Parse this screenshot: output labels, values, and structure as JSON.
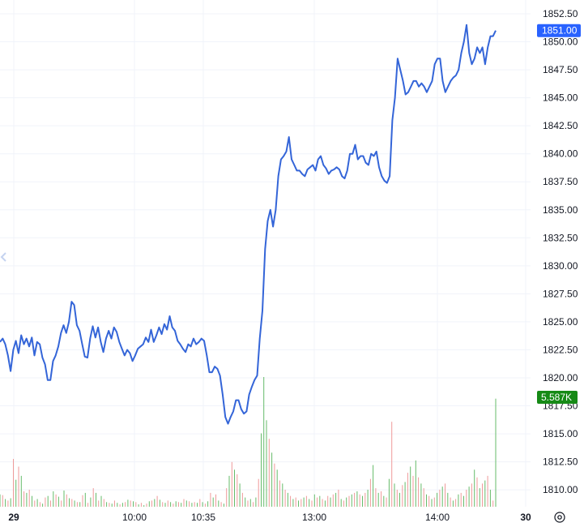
{
  "chart_data": {
    "type": "line",
    "title": "",
    "xlabel": "",
    "ylabel": "",
    "x_tick_labels": [
      "29",
      "10:00",
      "10:35",
      "13:00",
      "14:00",
      "30"
    ],
    "x_tick_bold": [
      "29",
      "30"
    ],
    "y_tick_labels": [
      "1852.50",
      "1850.00",
      "1847.50",
      "1845.00",
      "1842.50",
      "1840.00",
      "1837.50",
      "1835.00",
      "1832.50",
      "1830.00",
      "1827.50",
      "1825.00",
      "1822.50",
      "1820.00",
      "1817.50",
      "1815.00",
      "1812.50",
      "1810.00"
    ],
    "ylim": [
      1808.95,
      1853.45
    ],
    "grid": true,
    "last_price_label": "1851.00",
    "last_price_value": 1851.0,
    "volume_label": "5.587K",
    "series": [
      {
        "values": [
          1823.2,
          1823.5,
          1823.0,
          1822.0,
          1820.6,
          1822.5,
          1823.3,
          1822.2,
          1823.8,
          1823.0,
          1823.5,
          1822.8,
          1823.6,
          1822.0,
          1823.2,
          1823.0,
          1821.8,
          1821.2,
          1819.8,
          1819.8,
          1821.5,
          1822.0,
          1822.8,
          1824.0,
          1824.7,
          1824.0,
          1825.0,
          1826.8,
          1826.5,
          1824.7,
          1824.2,
          1823.0,
          1821.9,
          1821.8,
          1823.5,
          1824.6,
          1823.6,
          1824.5,
          1823.2,
          1822.3,
          1823.5,
          1824.2,
          1823.5,
          1824.5,
          1824.1,
          1823.2,
          1822.6,
          1822.0,
          1822.5,
          1822.2,
          1821.5,
          1822.0,
          1822.6,
          1822.8,
          1823.0,
          1823.6,
          1823.2,
          1824.3,
          1823.2,
          1823.8,
          1824.5,
          1823.9,
          1824.8,
          1824.3,
          1825.5,
          1824.5,
          1824.2,
          1823.3,
          1823.0,
          1822.6,
          1822.3,
          1823.0,
          1822.8,
          1823.5,
          1823.0,
          1823.2,
          1823.5,
          1823.3,
          1822.0,
          1820.5,
          1820.5,
          1821.0,
          1820.8,
          1820.2,
          1818.5,
          1816.5,
          1815.9,
          1816.5,
          1817.0,
          1818.0,
          1818.0,
          1817.2,
          1816.8,
          1817.0,
          1818.5,
          1819.2,
          1819.8,
          1820.2,
          1823.5,
          1826.0,
          1831.5,
          1834.0,
          1835.0,
          1833.5,
          1835.0,
          1838.0,
          1839.5,
          1839.8,
          1840.2,
          1841.5,
          1839.5,
          1839.0,
          1838.5,
          1838.5,
          1838.2,
          1838.0,
          1838.6,
          1838.8,
          1839.0,
          1838.5,
          1839.5,
          1839.8,
          1839.0,
          1838.7,
          1838.2,
          1838.5,
          1838.6,
          1838.8,
          1838.6,
          1838.0,
          1837.8,
          1838.5,
          1840.0,
          1840.0,
          1840.8,
          1839.5,
          1839.8,
          1839.8,
          1839.2,
          1839.0,
          1840.0,
          1839.8,
          1840.2,
          1838.8,
          1838.0,
          1837.6,
          1837.4,
          1838.0,
          1843.0,
          1845.0,
          1848.5,
          1847.5,
          1846.5,
          1845.3,
          1845.5,
          1846.0,
          1846.5,
          1846.5,
          1846.0,
          1846.3,
          1846.0,
          1845.5,
          1846.0,
          1846.5,
          1848.0,
          1848.5,
          1848.5,
          1846.5,
          1845.5,
          1846.0,
          1846.5,
          1846.8,
          1847.0,
          1847.5,
          1849.0,
          1850.0,
          1851.5,
          1849.0,
          1848.0,
          1848.5,
          1849.5,
          1849.0,
          1849.5,
          1848.0,
          1849.5,
          1850.5,
          1850.5,
          1851.0
        ]
      }
    ],
    "volume": {
      "values": [
        16,
        15,
        10,
        8,
        11,
        62,
        35,
        52,
        40,
        20,
        18,
        22,
        14,
        8,
        10,
        6,
        4,
        12,
        14,
        8,
        20,
        16,
        13,
        8,
        21,
        16,
        11,
        10,
        8,
        6,
        6,
        15,
        18,
        5,
        12,
        24,
        18,
        8,
        14,
        10,
        6,
        5,
        4,
        8,
        5,
        3,
        5,
        6,
        9,
        8,
        7,
        6,
        3,
        5,
        2,
        4,
        7,
        8,
        10,
        14,
        9,
        6,
        5,
        8,
        6,
        4,
        7,
        6,
        5,
        10,
        8,
        7,
        5,
        6,
        5,
        10,
        6,
        4,
        7,
        18,
        12,
        16,
        8,
        6,
        4,
        24,
        40,
        58,
        48,
        42,
        30,
        18,
        12,
        8,
        10,
        6,
        12,
        36,
        95,
        168,
        112,
        88,
        70,
        56,
        48,
        34,
        30,
        22,
        18,
        14,
        10,
        12,
        8,
        10,
        12,
        14,
        10,
        8,
        16,
        12,
        14,
        10,
        8,
        14,
        12,
        16,
        18,
        22,
        10,
        8,
        12,
        14,
        16,
        18,
        20,
        16,
        14,
        18,
        22,
        36,
        54,
        24,
        18,
        20,
        14,
        12,
        36,
        110,
        30,
        22,
        18,
        28,
        32,
        44,
        52,
        40,
        60,
        38,
        30,
        24,
        16,
        14,
        10,
        12,
        18,
        22,
        26,
        30,
        18,
        12,
        8,
        10,
        16,
        18,
        14,
        22,
        26,
        30,
        48,
        38,
        24,
        30,
        34,
        40,
        22,
        8,
        140
      ],
      "colors": [
        "g",
        "r",
        "g",
        "r",
        "g",
        "r",
        "g",
        "r",
        "g",
        "r",
        "g",
        "r",
        "g",
        "r",
        "g",
        "r",
        "g",
        "r",
        "g",
        "r",
        "g",
        "r",
        "g",
        "r",
        "g",
        "r",
        "g",
        "r",
        "g",
        "r",
        "g",
        "r",
        "g",
        "r",
        "g",
        "r",
        "g",
        "r",
        "g",
        "r",
        "g",
        "r",
        "g",
        "r",
        "g",
        "r",
        "g",
        "r",
        "g",
        "r",
        "g",
        "r",
        "g",
        "r",
        "g",
        "r",
        "g",
        "r",
        "g",
        "r",
        "g",
        "r",
        "g",
        "r",
        "g",
        "r",
        "g",
        "r",
        "g",
        "r",
        "g",
        "r",
        "g",
        "r",
        "g",
        "r",
        "g",
        "r",
        "g",
        "r",
        "g",
        "r",
        "g",
        "r",
        "g",
        "r",
        "g",
        "r",
        "g",
        "r",
        "g",
        "r",
        "g",
        "r",
        "g",
        "r",
        "g",
        "r",
        "g",
        "g",
        "g",
        "r",
        "g",
        "r",
        "g",
        "r",
        "g",
        "r",
        "g",
        "r",
        "g",
        "r",
        "g",
        "r",
        "g",
        "r",
        "g",
        "r",
        "g",
        "r",
        "g",
        "r",
        "g",
        "r",
        "g",
        "r",
        "g",
        "r",
        "g",
        "r",
        "g",
        "r",
        "g",
        "r",
        "g",
        "r",
        "g",
        "r",
        "g",
        "r",
        "g",
        "r",
        "g",
        "r",
        "g",
        "r",
        "g",
        "r",
        "g",
        "r",
        "g",
        "r",
        "g",
        "r",
        "g",
        "r",
        "g",
        "r",
        "g",
        "r",
        "g",
        "r",
        "g",
        "r",
        "g",
        "r",
        "g",
        "r",
        "g",
        "r",
        "g",
        "r",
        "g",
        "r",
        "g",
        "r",
        "g",
        "r",
        "g",
        "r",
        "g",
        "r",
        "g",
        "r",
        "g",
        "r",
        "g",
        "r",
        "g"
      ]
    }
  },
  "colors": {
    "line": "#2962ff",
    "line_draw": "#3465d8",
    "grid": "#f0f3fa",
    "volume_up": "#66bb6a",
    "volume_down": "#ef9a9a",
    "price_tag": "#2962ff",
    "volume_tag": "#168a16",
    "text": "#131722"
  },
  "icons": {
    "settings": "gear-icon",
    "scroll_left": "chevron-left-icon"
  }
}
